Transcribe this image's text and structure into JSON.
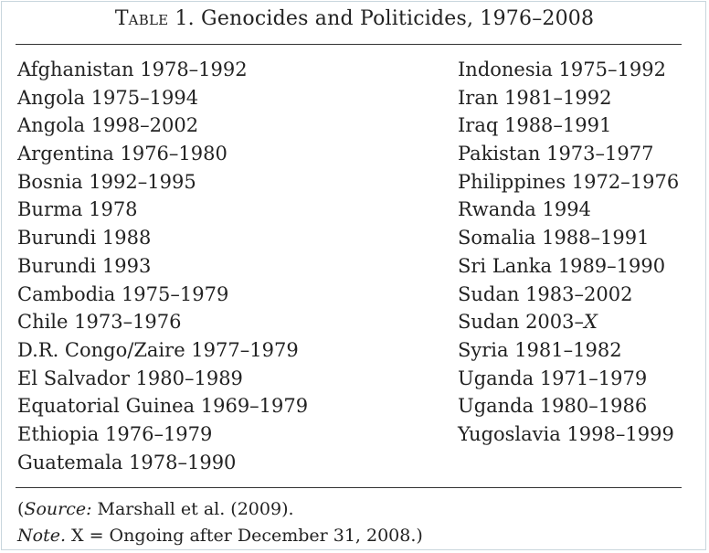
{
  "table": {
    "label": "Table 1.",
    "title": "Genocides and Politicides, 1976–2008",
    "left_column": [
      "Afghanistan 1978–1992",
      "Angola 1975–1994",
      "Angola 1998–2002",
      "Argentina 1976–1980",
      "Bosnia 1992–1995",
      "Burma 1978",
      "Burundi 1988",
      "Burundi 1993",
      "Cambodia 1975–1979",
      "Chile 1973–1976",
      "D.R. Congo/Zaire 1977–1979",
      "El Salvador 1980–1989",
      "Equatorial Guinea 1969–1979",
      "Ethiopia 1976–1979",
      "Guatemala 1978–1990"
    ],
    "right_column": [
      "Indonesia 1975–1992",
      "Iran 1981–1992",
      "Iraq 1988–1991",
      "Pakistan 1973–1977",
      "Philippines 1972–1976",
      "Rwanda 1994",
      "Somalia 1988–1991",
      "Sri Lanka 1989–1990",
      "Sudan 1983–2002",
      "Sudan 2003–X",
      "Syria 1981–1982",
      "Uganda 1971–1979",
      "Uganda 1980–1986",
      "Yugoslavia 1998–1999"
    ],
    "source_open": "(",
    "source_label": "Source:",
    "source_text": " Marshall et al. (2009).",
    "note_label": "Note.",
    "note_text": " X = Ongoing after December 31, 2008.)"
  }
}
